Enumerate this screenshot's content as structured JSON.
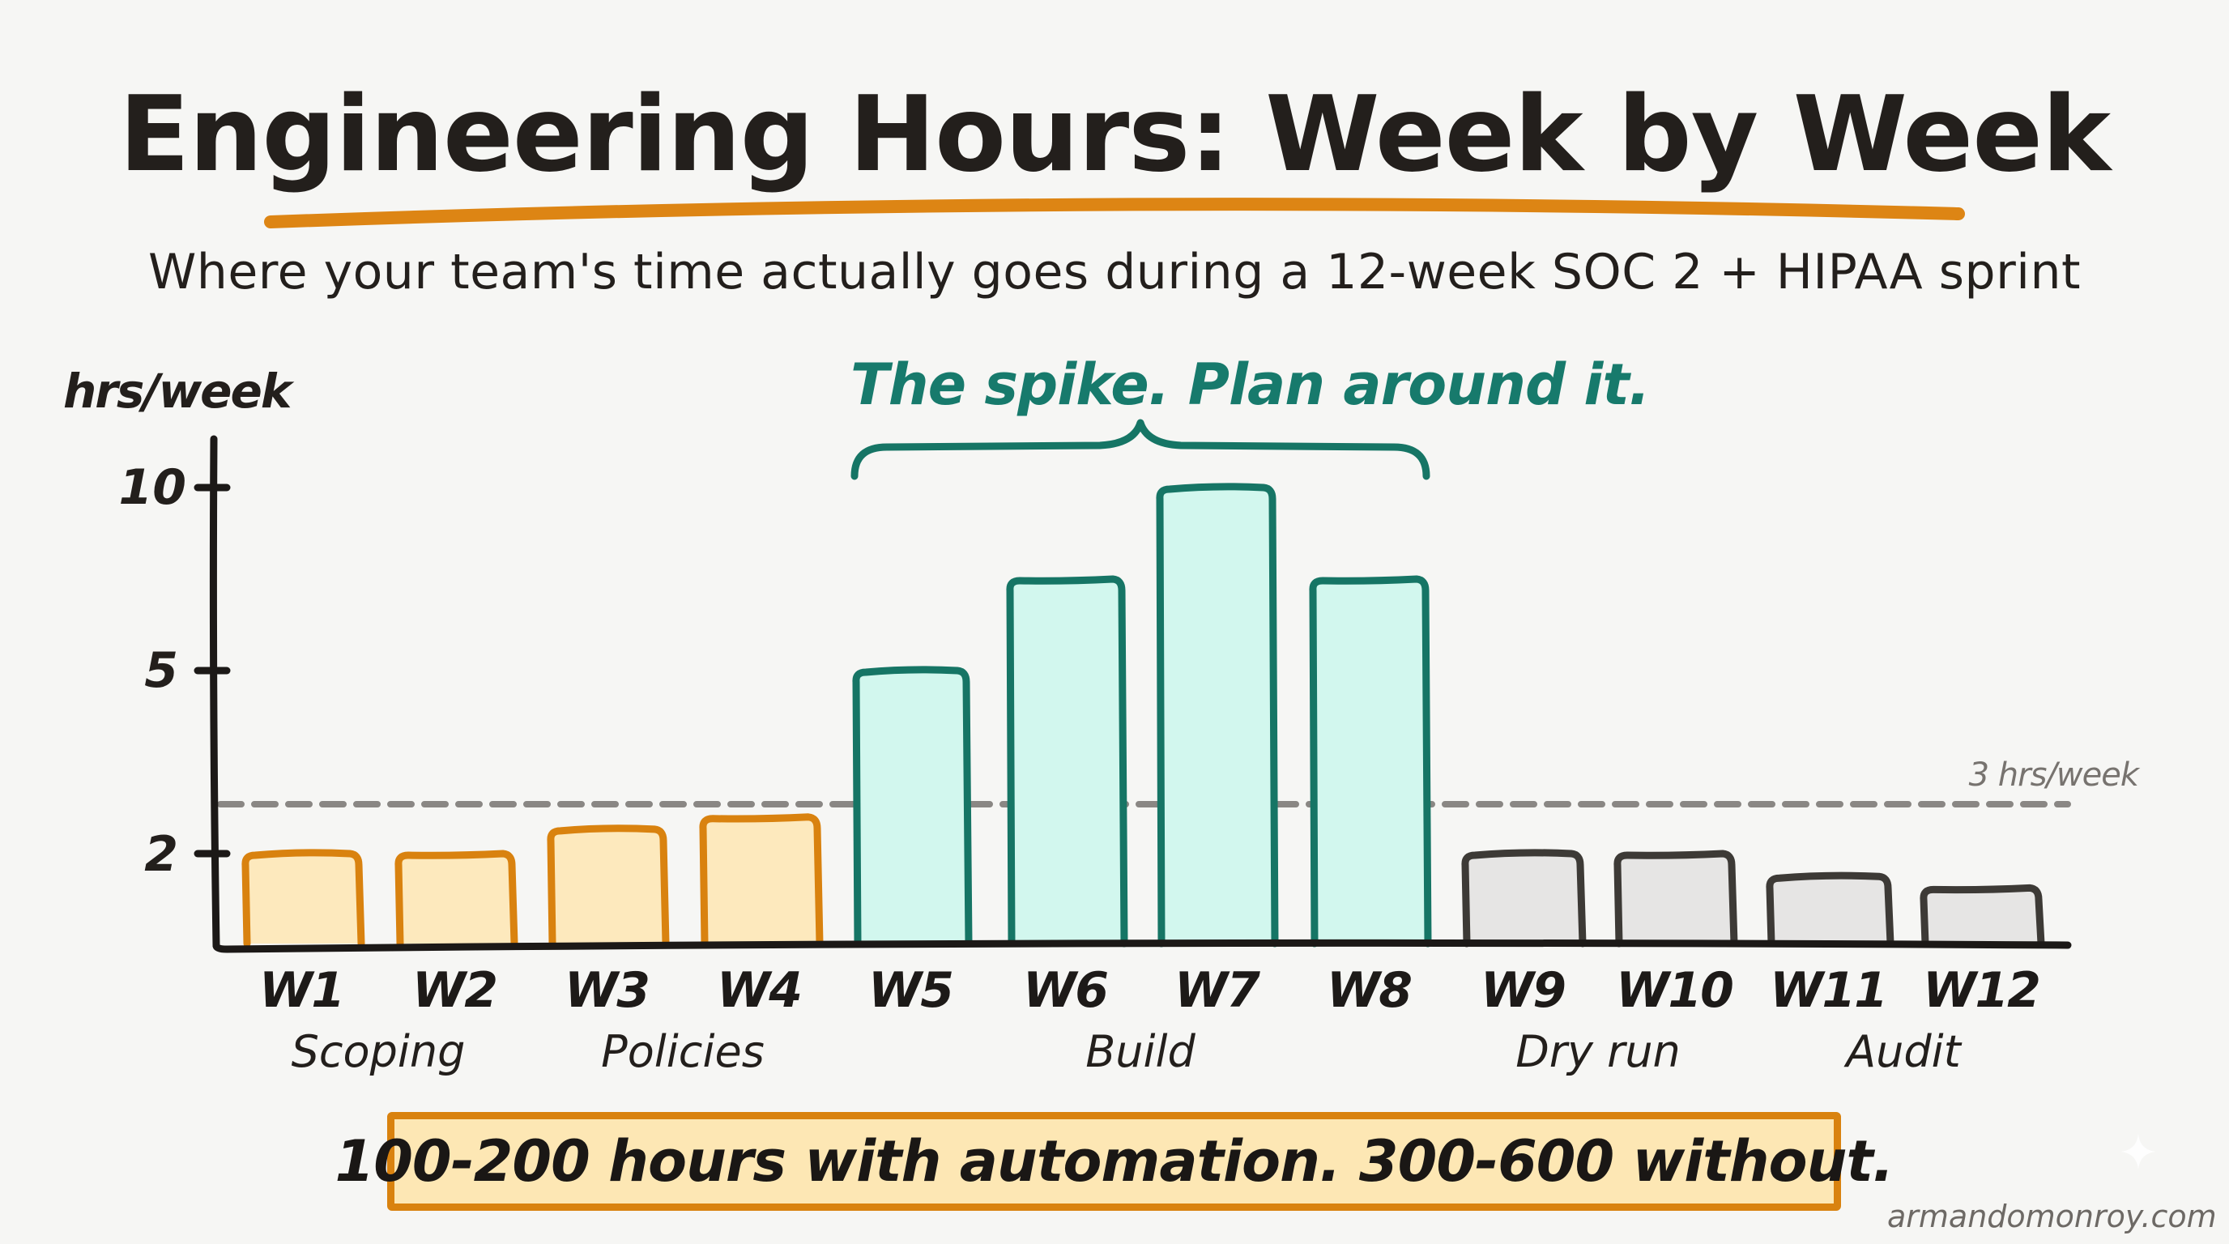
{
  "title": "Engineering Hours: Week by Week",
  "subtitle": "Where your team's time actually goes during a 12-week SOC 2 + HIPAA sprint",
  "annotation": "The spike. Plan around it.",
  "callout": "100-200 hours with automation. 300-600 without.",
  "watermark": "armandomonroy.com",
  "colors": {
    "background": "#f6f6f4",
    "text": "#231f1c",
    "title_underline": "#dd8514",
    "scoping_policies_stroke": "#d9820f",
    "scoping_policies_fill": "#fde9bd",
    "build_stroke": "#167565",
    "build_fill": "#d2f7ee",
    "dryrun_audit_stroke": "#3d3a36",
    "dryrun_audit_fill": "#e6e5e4",
    "reference_line": "#8a8784",
    "annotation": "#177a6c",
    "callout_fill": "#fde7b4",
    "callout_border": "#d9820f"
  },
  "chart_data": {
    "type": "bar",
    "title": "Engineering Hours: Week by Week",
    "subtitle": "Where your team's time actually goes during a 12-week SOC 2 + HIPAA sprint",
    "xlabel": "",
    "ylabel": "hrs/week",
    "categories": [
      "W1",
      "W2",
      "W3",
      "W4",
      "W5",
      "W6",
      "W7",
      "W8",
      "W9",
      "W10",
      "W11",
      "W12"
    ],
    "values": [
      2,
      2,
      2.4,
      2.6,
      5,
      7.5,
      10,
      7.5,
      2,
      2,
      1.5,
      1.25
    ],
    "phase_of_bar": [
      "Scoping",
      "Scoping",
      "Policies",
      "Policies",
      "Build",
      "Build",
      "Build",
      "Build",
      "Dry run",
      "Dry run",
      "Audit",
      "Audit"
    ],
    "color_group_of_bar": [
      "orange",
      "orange",
      "orange",
      "orange",
      "teal",
      "teal",
      "teal",
      "teal",
      "grey",
      "grey",
      "grey",
      "grey"
    ],
    "phases": [
      {
        "label": "Scoping",
        "weeks": [
          "W1",
          "W2"
        ]
      },
      {
        "label": "Policies",
        "weeks": [
          "W3",
          "W4"
        ]
      },
      {
        "label": "Build",
        "weeks": [
          "W5",
          "W6",
          "W7",
          "W8"
        ]
      },
      {
        "label": "Dry run",
        "weeks": [
          "W9",
          "W10"
        ]
      },
      {
        "label": "Audit",
        "weeks": [
          "W11",
          "W12"
        ]
      }
    ],
    "yticks": [
      {
        "value": 10,
        "label": "10"
      },
      {
        "value": 5,
        "label": "5"
      },
      {
        "value": 2,
        "label": "2"
      }
    ],
    "ylim": [
      0,
      10
    ],
    "grid": false,
    "legend": null,
    "reference_line": {
      "value": 3,
      "label": "3 hrs/week",
      "style": "dashed"
    },
    "annotations": [
      {
        "text": "The spike. Plan around it.",
        "spans": [
          "W5",
          "W8"
        ],
        "shape": "curly-brace"
      },
      {
        "text": "100-200 hours with automation. 300-600 without.",
        "position": "bottom-callout"
      }
    ]
  }
}
